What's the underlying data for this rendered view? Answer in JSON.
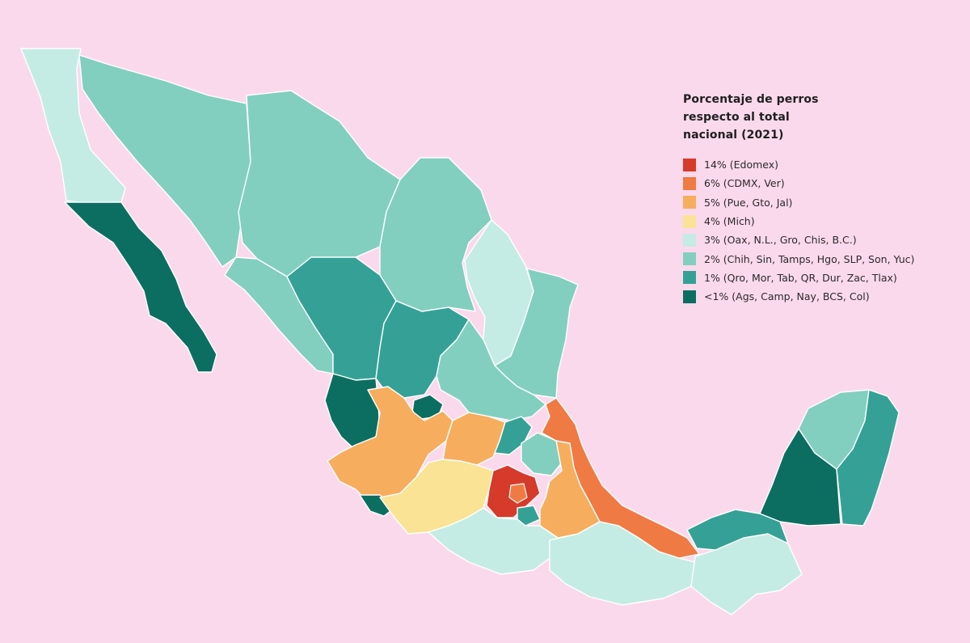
{
  "colors": {
    "background": "#fbd9ec",
    "edomex": "#d63a2a",
    "tier6": "#f07a43",
    "tier5": "#f7ad5e",
    "tier4": "#fae394",
    "tier3": "#c4ece4",
    "tier2": "#82cfc0",
    "tier1": "#35a196",
    "tier0": "#0c6e61"
  },
  "legend": {
    "title": "Porcentaje de perros respecto al total\nnacional (2021)",
    "items": [
      {
        "label": "14% (Edomex)",
        "color": "#d63a2a"
      },
      {
        "label": "6% (CDMX, Ver)",
        "color": "#f07a43"
      },
      {
        "label": "5% (Pue, Gto, Jal)",
        "color": "#f7ad5e"
      },
      {
        "label": "4% (Mich)",
        "color": "#fae394"
      },
      {
        "label": "3% (Oax, N.L., Gro, Chis, B.C.)",
        "color": "#c4ece4"
      },
      {
        "label": "2% (Chih, Sin, Tamps, Hgo, SLP, Son, Yuc)",
        "color": "#82cfc0"
      },
      {
        "label": "1% (Qro, Mor, Tab, QR, Dur, Zac, Tlax)",
        "color": "#35a196"
      },
      {
        "label": "<1% (Ags, Camp, Nay, BCS, Col)",
        "color": "#0c6e61"
      }
    ]
  }
}
